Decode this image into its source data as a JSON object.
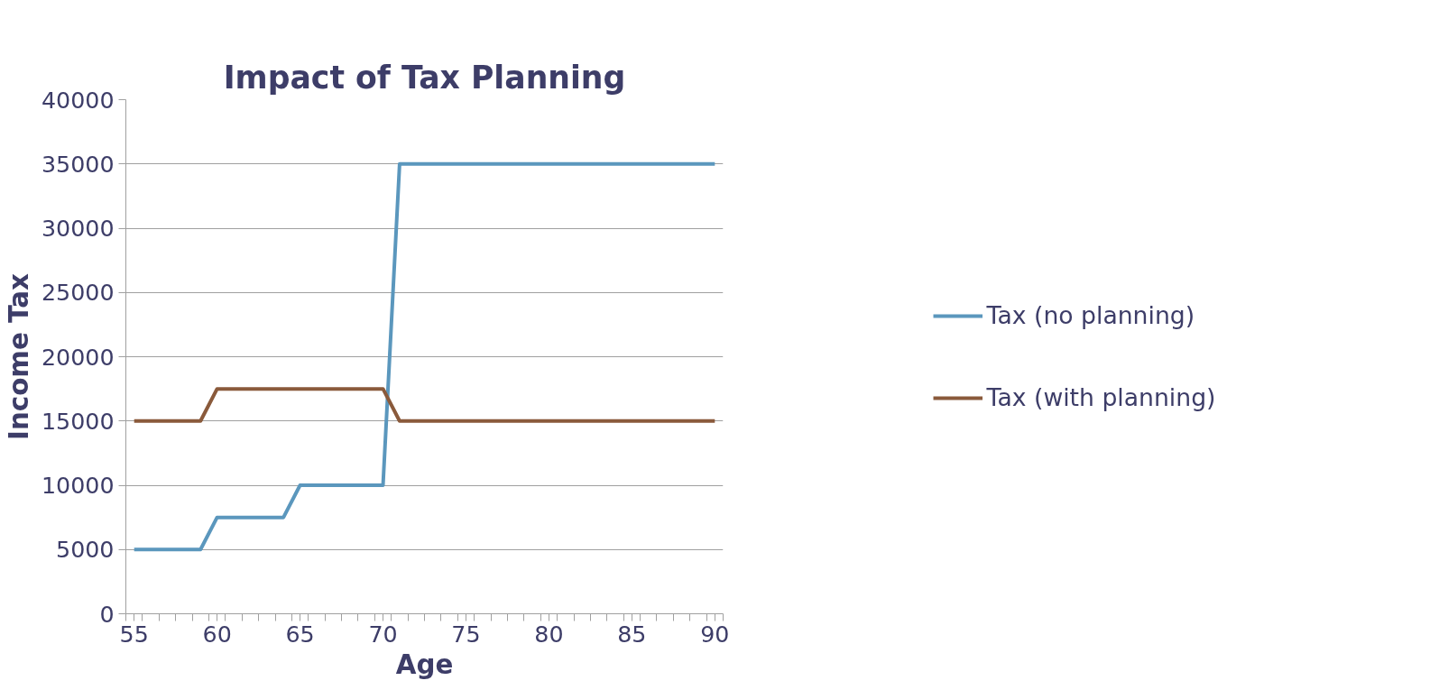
{
  "chart_data": {
    "type": "line",
    "title": "Impact of Tax Planning",
    "xlabel": "Age",
    "ylabel": "Income Tax",
    "x": [
      55,
      56,
      57,
      58,
      59,
      60,
      61,
      62,
      63,
      64,
      65,
      66,
      67,
      68,
      69,
      70,
      71,
      72,
      73,
      74,
      75,
      76,
      77,
      78,
      79,
      80,
      81,
      82,
      83,
      84,
      85,
      86,
      87,
      88,
      89,
      90
    ],
    "series": [
      {
        "name": "Tax (no planning)",
        "color": "#5b97bd",
        "values": [
          5000,
          5000,
          5000,
          5000,
          5000,
          7500,
          7500,
          7500,
          7500,
          7500,
          10000,
          10000,
          10000,
          10000,
          10000,
          10000,
          35000,
          35000,
          35000,
          35000,
          35000,
          35000,
          35000,
          35000,
          35000,
          35000,
          35000,
          35000,
          35000,
          35000,
          35000,
          35000,
          35000,
          35000,
          35000,
          35000
        ]
      },
      {
        "name": "Tax (with planning)",
        "color": "#8a5a3b",
        "values": [
          15000,
          15000,
          15000,
          15000,
          15000,
          17500,
          17500,
          17500,
          17500,
          17500,
          17500,
          17500,
          17500,
          17500,
          17500,
          17500,
          15000,
          15000,
          15000,
          15000,
          15000,
          15000,
          15000,
          15000,
          15000,
          15000,
          15000,
          15000,
          15000,
          15000,
          15000,
          15000,
          15000,
          15000,
          15000,
          15000
        ]
      }
    ],
    "xlim": [
      54.5,
      90.5
    ],
    "xticks": [
      55,
      60,
      65,
      70,
      75,
      80,
      85,
      90,
      {
        "value": 54.5,
        "label": null
      },
      {
        "value": 55.5,
        "label": null
      },
      {
        "value": 56.5,
        "label": null
      },
      {
        "value": 57.5,
        "label": null
      },
      {
        "value": 58.5,
        "label": null
      },
      {
        "value": 59.5,
        "label": null
      },
      {
        "value": 60.5,
        "label": null
      },
      {
        "value": 61.5,
        "label": null
      },
      {
        "value": 62.5,
        "label": null
      },
      {
        "value": 63.5,
        "label": null
      },
      {
        "value": 64.5,
        "label": null
      },
      {
        "value": 65.5,
        "label": null
      },
      {
        "value": 66.5,
        "label": null
      },
      {
        "value": 67.5,
        "label": null
      },
      {
        "value": 68.5,
        "label": null
      },
      {
        "value": 69.5,
        "label": null
      },
      {
        "value": 70.5,
        "label": null
      },
      {
        "value": 71.5,
        "label": null
      },
      {
        "value": 72.5,
        "label": null
      },
      {
        "value": 73.5,
        "label": null
      },
      {
        "value": 74.5,
        "label": null
      },
      {
        "value": 75.5,
        "label": null
      },
      {
        "value": 76.5,
        "label": null
      },
      {
        "value": 77.5,
        "label": null
      },
      {
        "value": 78.5,
        "label": null
      },
      {
        "value": 79.5,
        "label": null
      },
      {
        "value": 80.5,
        "label": null
      },
      {
        "value": 81.5,
        "label": null
      },
      {
        "value": 82.5,
        "label": null
      },
      {
        "value": 83.5,
        "label": null
      },
      {
        "value": 84.5,
        "label": null
      },
      {
        "value": 85.5,
        "label": null
      },
      {
        "value": 86.5,
        "label": null
      },
      {
        "value": 87.5,
        "label": null
      },
      {
        "value": 88.5,
        "label": null
      },
      {
        "value": 89.5,
        "label": null
      },
      {
        "value": 90.5,
        "label": null
      }
    ],
    "ylim": [
      0,
      40000
    ],
    "yticks": [
      0,
      5000,
      10000,
      15000,
      20000,
      25000,
      30000,
      35000,
      40000
    ],
    "grid": "y",
    "legend": "right",
    "marker": "none",
    "line_style": "solid"
  }
}
